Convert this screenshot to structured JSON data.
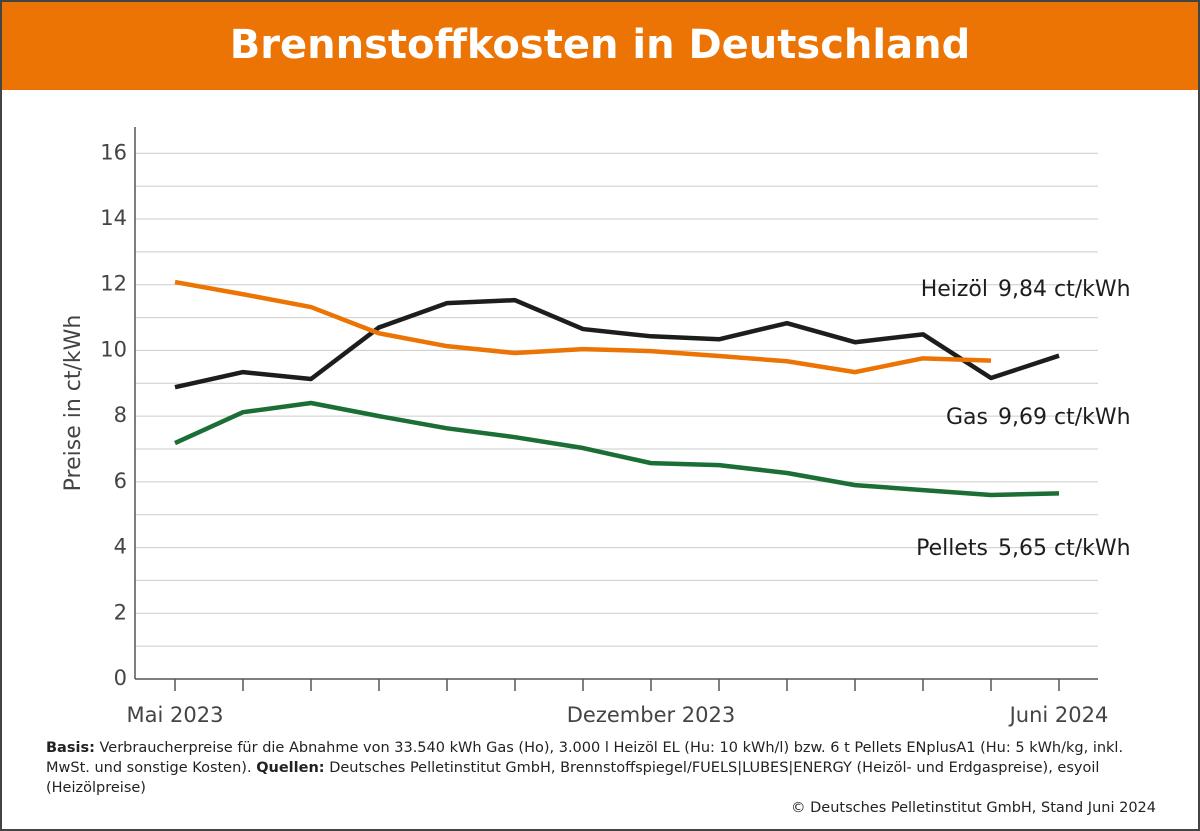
{
  "chart_data": {
    "type": "line",
    "title": "Brennstoffkosten in Deutschland",
    "y_label": "Preise in ct/kWh",
    "categories": [
      "Mai 2023",
      null,
      null,
      null,
      null,
      null,
      null,
      "Dezember 2023",
      null,
      null,
      null,
      null,
      null,
      "Juni 2024"
    ],
    "ylim": [
      0,
      16.8
    ],
    "yticks": [
      0,
      2,
      4,
      6,
      8,
      10,
      12,
      14,
      16
    ],
    "minor_yticks": [
      1,
      3,
      5,
      7,
      9,
      11,
      13,
      15
    ],
    "grid": true,
    "series": [
      {
        "name": "Heizöl",
        "label": "9,84 ct/kWh",
        "color": "#1d1d1b",
        "values": [
          8.88,
          9.34,
          9.13,
          10.7,
          11.44,
          11.53,
          10.65,
          10.43,
          10.34,
          10.83,
          10.25,
          10.49,
          9.16,
          9.84
        ]
      },
      {
        "name": "Gas",
        "label": "9,69 ct/kWh",
        "color": "#ec7404",
        "values": [
          12.08,
          11.71,
          11.32,
          10.52,
          10.13,
          9.92,
          10.04,
          9.98,
          9.83,
          9.67,
          9.34,
          9.76,
          9.69,
          null
        ]
      },
      {
        "name": "Pellets",
        "label": "5,65 ct/kWh",
        "color": "#1b6e35",
        "values": [
          7.18,
          8.12,
          8.4,
          8.0,
          7.63,
          7.36,
          7.03,
          6.57,
          6.51,
          6.27,
          5.9,
          5.75,
          5.6,
          5.65
        ]
      }
    ]
  },
  "footer": {
    "basis_label": "Basis:",
    "basis_text": "Verbraucherpreise für die Abnahme von 33.540 kWh Gas (Ho), 3.000 l Heizöl EL (Hu: 10 kWh/l) bzw. 6 t Pellets ENplusA1 (Hu: 5 kWh/kg, inkl. MwSt. und sonstige Kosten).",
    "sources_label": "Quellen:",
    "sources_text": "Deutsches Pelletinstitut GmbH, Brennstoffspiegel/FUELS|LUBES|ENERGY (Heizöl- und Erdgaspreise), esyoil (Heizölpreise)",
    "copyright": "© Deutsches Pelletinstitut GmbH, Stand Juni 2024"
  }
}
